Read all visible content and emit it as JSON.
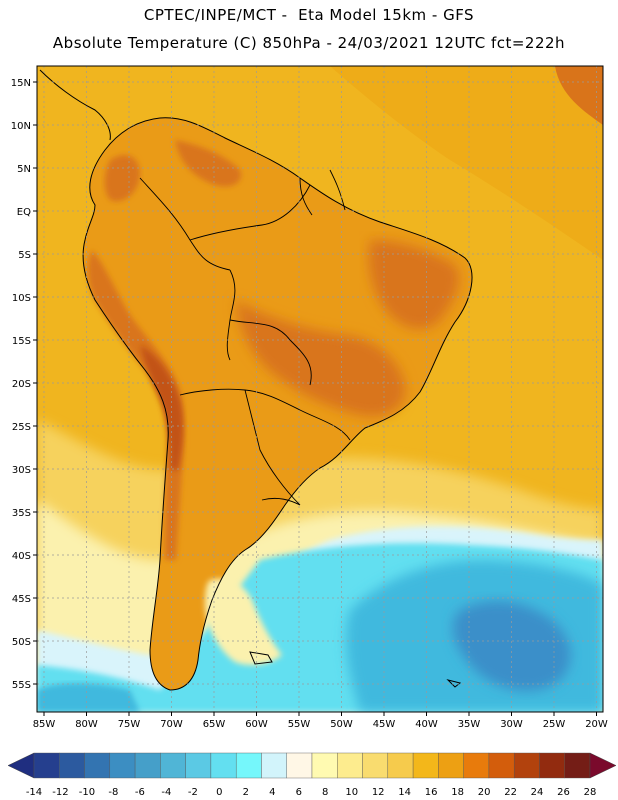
{
  "header": {
    "line1": "CPTEC/INPE/MCT -  Eta Model 15km - GFS",
    "line2": "Absolute Temperature (C) 850hPa - 24/03/2021 12UTC fct=222h"
  },
  "map": {
    "lat_labels": [
      "15N",
      "10N",
      "5N",
      "EQ",
      "5S",
      "10S",
      "15S",
      "20S",
      "25S",
      "30S",
      "35S",
      "40S",
      "45S",
      "50S",
      "55S"
    ],
    "lon_labels": [
      "85W",
      "80W",
      "75W",
      "70W",
      "65W",
      "60W",
      "55W",
      "50W",
      "45W",
      "40W",
      "35W",
      "30W",
      "25W",
      "20W"
    ],
    "colors": {
      "ocean_tropical": "#f0b51f",
      "ocean_north": "#eeac18",
      "land_warm": "#ea9b17",
      "andes": "#d9741a",
      "hot_core": "#c25214",
      "subtropical": "#f6d25d",
      "transition": "#fbf1ae",
      "cool": "#d9f4fb",
      "cold_cyan": "#62dff0",
      "cold": "#41b9de",
      "coldest": "#3a8fc9",
      "coast": "#000000",
      "grid": "#9a9a9a"
    }
  },
  "colorbar": {
    "ticks": [
      "-14",
      "-12",
      "-10",
      "-8",
      "-6",
      "-4",
      "-2",
      "0",
      "2",
      "4",
      "6",
      "8",
      "10",
      "12",
      "14",
      "16",
      "18",
      "20",
      "22",
      "24",
      "26",
      "28"
    ],
    "colors": [
      "#253f8e",
      "#2c5a9f",
      "#3374b1",
      "#3c8ec2",
      "#459fc9",
      "#50b5d6",
      "#5bc9e4",
      "#63dff0",
      "#75f7fb",
      "#d2f4fb",
      "#fff7e6",
      "#fffab1",
      "#fdec8e",
      "#f9dc6f",
      "#f6cb4c",
      "#f3b71a",
      "#eda013",
      "#e87b0c",
      "#d35d0c",
      "#b2420d",
      "#922b0f",
      "#741d16"
    ],
    "under_color": "#1f2e80",
    "over_color": "#7a0a2c"
  }
}
